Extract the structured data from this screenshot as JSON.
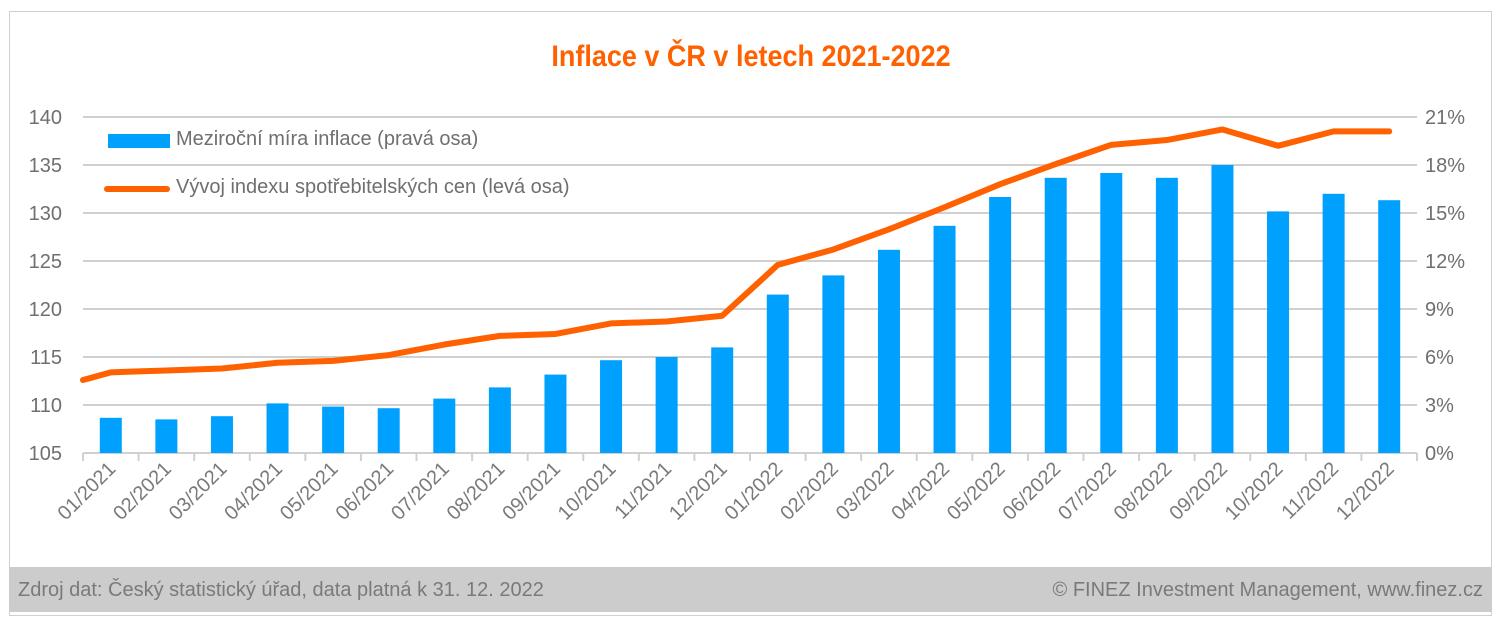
{
  "chart_data": {
    "type": "bar+line",
    "title": "Inflace v ČR v letech 2021-2022",
    "categories": [
      "01/2021",
      "02/2021",
      "03/2021",
      "04/2021",
      "05/2021",
      "06/2021",
      "07/2021",
      "08/2021",
      "09/2021",
      "10/2021",
      "11/2021",
      "12/2021",
      "01/2022",
      "02/2022",
      "03/2022",
      "04/2022",
      "05/2022",
      "06/2022",
      "07/2022",
      "08/2022",
      "09/2022",
      "10/2022",
      "11/2022",
      "12/2022"
    ],
    "series": [
      {
        "name": "Meziroční míra inflace (pravá osa)",
        "type": "bar",
        "axis": "right",
        "color": "#00a0ff",
        "values": [
          2.2,
          2.1,
          2.3,
          3.1,
          2.9,
          2.8,
          3.4,
          4.1,
          4.9,
          5.8,
          6.0,
          6.6,
          9.9,
          11.1,
          12.7,
          14.2,
          16.0,
          17.2,
          17.5,
          17.2,
          18.0,
          15.1,
          16.2,
          15.8
        ]
      },
      {
        "name": "Vývoj indexu spotřebitelských cen (levá osa)",
        "type": "line",
        "axis": "left",
        "color": "#ff6000",
        "start_value": 112.6,
        "values": [
          113.4,
          113.6,
          113.8,
          114.4,
          114.6,
          115.2,
          116.3,
          117.2,
          117.4,
          118.5,
          118.7,
          119.3,
          124.6,
          126.2,
          128.3,
          130.6,
          133.0,
          135.1,
          137.1,
          137.6,
          138.7,
          137.0,
          138.5,
          138.5
        ]
      }
    ],
    "left_axis": {
      "min": 105,
      "max": 140,
      "step": 5,
      "ticks": [
        "105",
        "110",
        "115",
        "120",
        "125",
        "130",
        "135",
        "140"
      ]
    },
    "right_axis": {
      "min": 0,
      "max": 21,
      "step": 3,
      "ticks": [
        "0%",
        "3%",
        "6%",
        "9%",
        "12%",
        "15%",
        "18%",
        "21%"
      ]
    },
    "grid": true,
    "legend_position": "top-left"
  },
  "footer": {
    "source": "Zdroj dat: Český statistický úřad, data platná k 31. 12. 2022",
    "copyright": "© FINEZ Investment Management, www.finez.cz"
  }
}
